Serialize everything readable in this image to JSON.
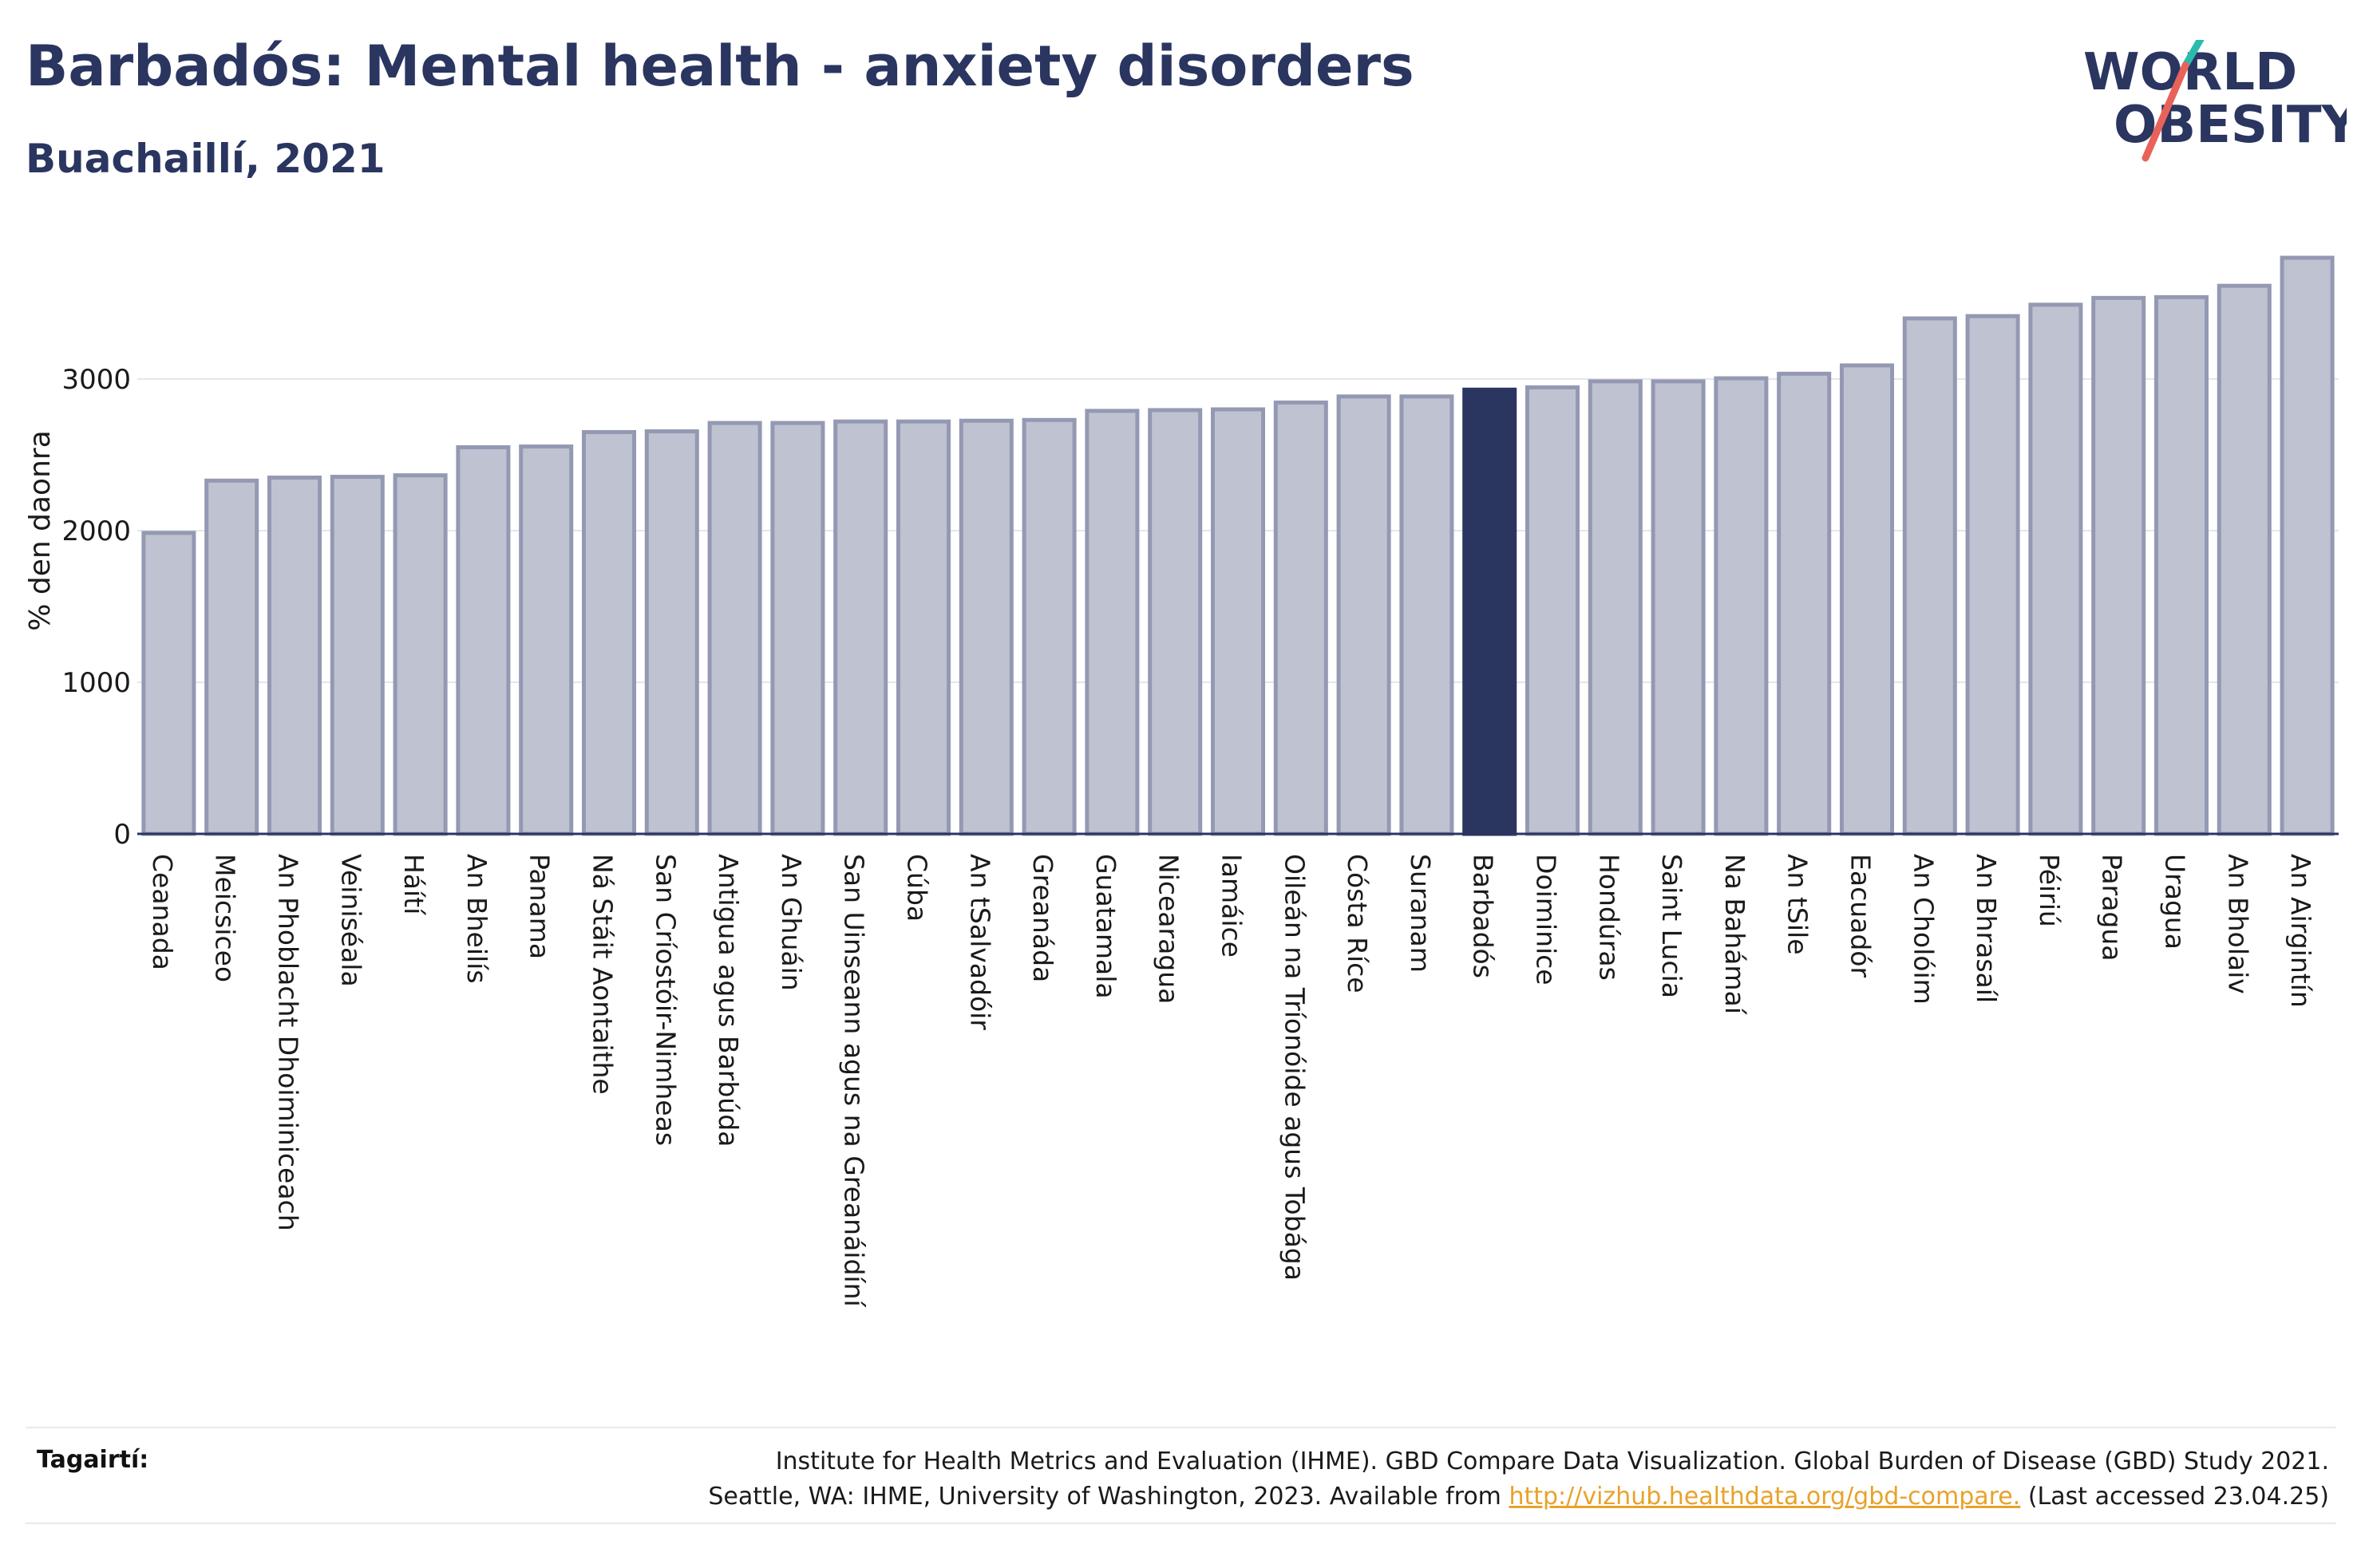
{
  "title": "Barbadós: Mental health - anxiety disorders",
  "subtitle": "Buachaillí, 2021",
  "logo": {
    "line1": "WORLD",
    "line2": "OBESITY"
  },
  "colors": {
    "bar": "#bfc2d0",
    "bar_border": "#9499b3",
    "highlight": "#2a3560",
    "text": "#2a3560",
    "link": "#e8a22a"
  },
  "chart_data": {
    "type": "bar",
    "ylabel": "% den daonra",
    "xlabel": "",
    "ylim": [
      0,
      4000
    ],
    "yticks": [
      0,
      1000,
      2000,
      3000
    ],
    "grid": true,
    "highlight": "Barbadós",
    "categories": [
      "Ceanada",
      "Meicsiceo",
      "An Phoblacht Dhoiminiceach",
      "Veiniséala",
      "Háítí",
      "An Bheilís",
      "Panama",
      "Ná Stáit Aontaithe",
      "San Críostóir-Nimheas",
      "Antigua agus Barbúda",
      "An Ghuáin",
      "San Uinseann agus na Greanáidíní",
      "Cúba",
      "An tSalvadóir",
      "Greanáda",
      "Guatamala",
      "Nicearagua",
      "Iamáice",
      "Oileán na Tríonóide agus Tobága",
      "Cósta Ríce",
      "Suranam",
      "Barbadós",
      "Doiminice",
      "Hondúras",
      "Saint Lucia",
      "Na Bahámaí",
      "An tSile",
      "Eacuadór",
      "An Cholóim",
      "An Bhrasaíl",
      "Péiriú",
      "Paragua",
      "Uragua",
      "An Bholaiv",
      "An Airgintín"
    ],
    "values": [
      1985,
      2330,
      2350,
      2355,
      2365,
      2550,
      2555,
      2650,
      2655,
      2710,
      2710,
      2720,
      2720,
      2725,
      2730,
      2790,
      2795,
      2800,
      2845,
      2885,
      2885,
      2930,
      2945,
      2985,
      2985,
      3005,
      3035,
      3090,
      3400,
      3415,
      3490,
      3535,
      3540,
      3615,
      3800
    ]
  },
  "footer": {
    "label": "Tagairtí:",
    "line1": "Institute for Health Metrics and Evaluation (IHME). GBD Compare Data Visualization. Global Burden of Disease (GBD) Study 2021.",
    "line2_pre": "Seattle, WA: IHME, University of Washington, 2023. Available from ",
    "link": "http://vizhub.healthdata.org/gbd-compare.",
    "line2_post": " (Last accessed 23.04.25)"
  }
}
